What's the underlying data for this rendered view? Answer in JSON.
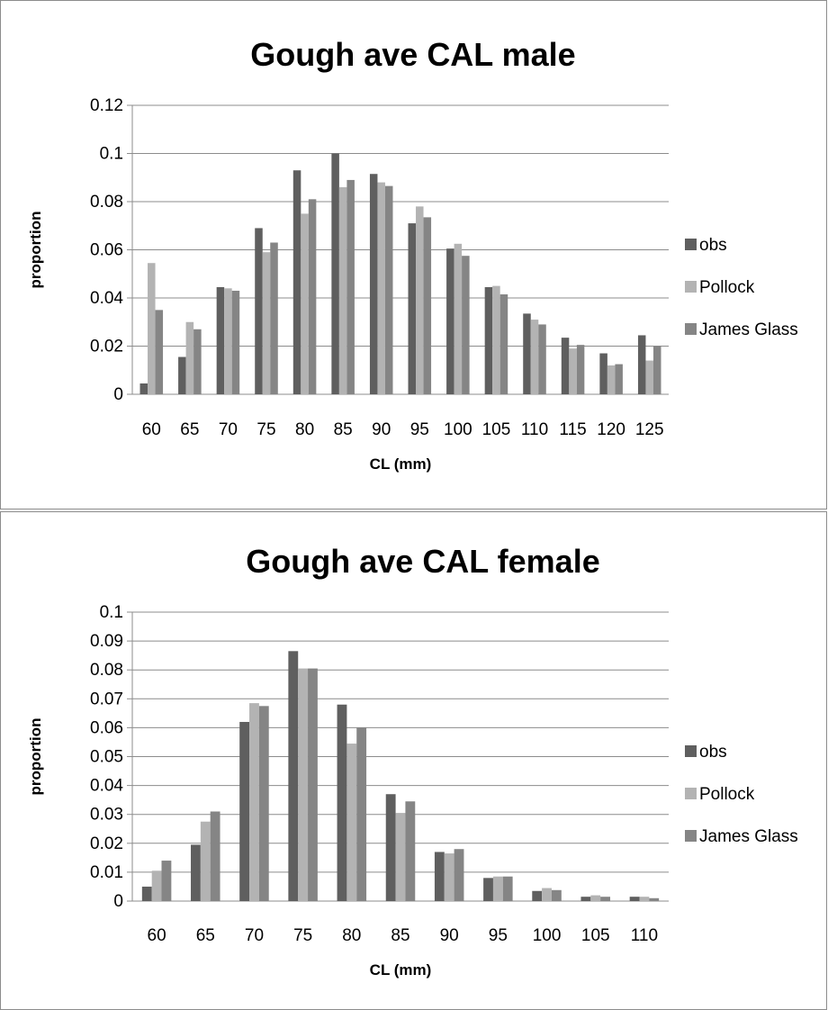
{
  "chart_data": [
    {
      "type": "bar",
      "title": "Gough ave CAL male",
      "xlabel": "CL (mm)",
      "ylabel": "proportion",
      "categories": [
        "60",
        "65",
        "70",
        "75",
        "80",
        "85",
        "90",
        "95",
        "100",
        "105",
        "110",
        "115",
        "120",
        "125"
      ],
      "ylim": [
        0,
        0.12
      ],
      "yticks": [
        "0",
        "0.02",
        "0.04",
        "0.06",
        "0.08",
        "0.1",
        "0.12"
      ],
      "grid": true,
      "legend_position": "right",
      "series": [
        {
          "name": "obs",
          "color": "#5f5f5f",
          "values": [
            0.0045,
            0.0155,
            0.0445,
            0.069,
            0.093,
            0.1,
            0.0915,
            0.071,
            0.0605,
            0.0445,
            0.0335,
            0.0235,
            0.017,
            0.0245
          ]
        },
        {
          "name": "Pollock",
          "color": "#b3b3b3",
          "values": [
            0.0545,
            0.03,
            0.044,
            0.059,
            0.075,
            0.086,
            0.088,
            0.078,
            0.0625,
            0.045,
            0.031,
            0.019,
            0.012,
            0.014
          ]
        },
        {
          "name": "James Glass",
          "color": "#858585",
          "values": [
            0.035,
            0.027,
            0.043,
            0.063,
            0.081,
            0.089,
            0.0865,
            0.0735,
            0.0575,
            0.0415,
            0.029,
            0.0205,
            0.0125,
            0.02
          ]
        }
      ]
    },
    {
      "type": "bar",
      "title": "Gough ave CAL female",
      "xlabel": "CL (mm)",
      "ylabel": "proportion",
      "categories": [
        "60",
        "65",
        "70",
        "75",
        "80",
        "85",
        "90",
        "95",
        "100",
        "105",
        "110"
      ],
      "ylim": [
        0,
        0.1
      ],
      "yticks": [
        "0",
        "0.01",
        "0.02",
        "0.03",
        "0.04",
        "0.05",
        "0.06",
        "0.07",
        "0.08",
        "0.09",
        "0.1"
      ],
      "grid": true,
      "legend_position": "right",
      "series": [
        {
          "name": "obs",
          "color": "#5f5f5f",
          "values": [
            0.005,
            0.0195,
            0.062,
            0.0865,
            0.068,
            0.037,
            0.017,
            0.008,
            0.0035,
            0.0015,
            0.0015
          ]
        },
        {
          "name": "Pollock",
          "color": "#b3b3b3",
          "values": [
            0.0105,
            0.0275,
            0.0685,
            0.0805,
            0.0545,
            0.0305,
            0.0165,
            0.0085,
            0.0045,
            0.002,
            0.0015
          ]
        },
        {
          "name": "James Glass",
          "color": "#858585",
          "values": [
            0.014,
            0.031,
            0.0675,
            0.0805,
            0.06,
            0.0345,
            0.018,
            0.0085,
            0.0038,
            0.0015,
            0.001
          ]
        }
      ]
    }
  ]
}
